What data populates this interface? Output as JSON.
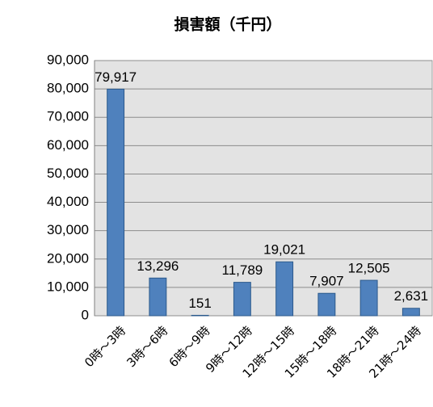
{
  "chart_data": {
    "type": "bar",
    "title": "損害額（千円）",
    "categories": [
      "0時～3時",
      "3時～6時",
      "6時～9時",
      "9時～12時",
      "12時～15時",
      "15時～18時",
      "18時～21時",
      "21時～24時"
    ],
    "values": [
      79917,
      13296,
      151,
      11789,
      19021,
      7907,
      12505,
      2631
    ],
    "value_labels": [
      "79,917",
      "13,296",
      "151",
      "11,789",
      "19,021",
      "7,907",
      "12,505",
      "2,631"
    ],
    "color": "#4f81bd",
    "ylim": [
      0,
      90000
    ],
    "yticks": [
      0,
      {
        "value": 10000,
        "label": "10,000"
      },
      {
        "value": 20000,
        "label": "20,000"
      },
      {
        "value": 30000,
        "label": "30,000"
      },
      {
        "value": 40000,
        "label": "40,000"
      },
      {
        "value": 50000,
        "label": "50,000"
      },
      {
        "value": 60000,
        "label": "60,000"
      },
      {
        "value": 70000,
        "label": "70,000"
      },
      {
        "value": 80000,
        "label": "80,000"
      },
      {
        "value": 90000,
        "label": "90,000"
      }
    ],
    "grid": true
  }
}
